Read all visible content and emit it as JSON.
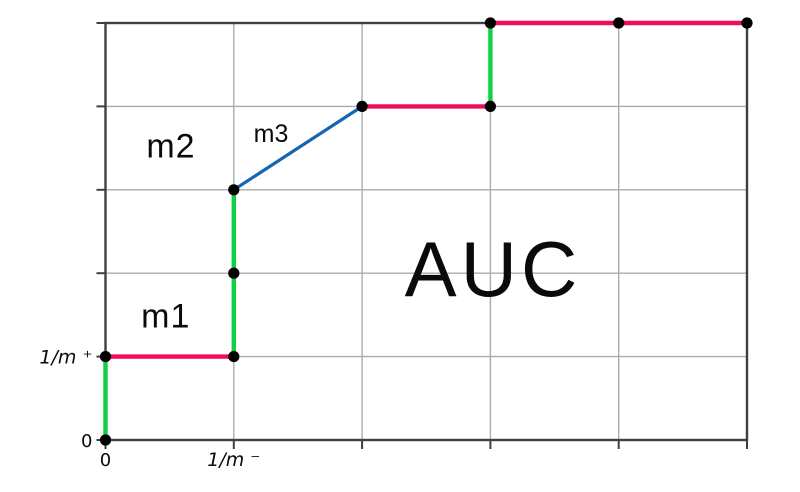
{
  "figure": {
    "description_label": "AUC"
  },
  "chart_data": {
    "type": "line",
    "subtype": "roc-step-curve",
    "title": "",
    "xlabel": "",
    "ylabel": "",
    "xlim": [
      0,
      5
    ],
    "ylim": [
      0,
      5
    ],
    "grid": true,
    "x_gridline_values": [
      0,
      1,
      2,
      3,
      4,
      5
    ],
    "y_gridline_values": [
      0,
      1,
      2,
      3,
      4,
      5
    ],
    "x_ticks": [
      {
        "value": 0,
        "label": "0"
      },
      {
        "value": 1,
        "label": "1/m ⁻"
      }
    ],
    "y_ticks": [
      {
        "value": 0,
        "label": "0"
      },
      {
        "value": 1,
        "label": "1/m ⁺"
      }
    ],
    "curve_points": [
      [
        0,
        0
      ],
      [
        0,
        1
      ],
      [
        1,
        1
      ],
      [
        1,
        2
      ],
      [
        1,
        3
      ],
      [
        2,
        4
      ],
      [
        3,
        4
      ],
      [
        3,
        5
      ],
      [
        5,
        5
      ]
    ],
    "segments": [
      {
        "from": [
          0,
          0
        ],
        "to": [
          0,
          1
        ],
        "kind": "positive_step"
      },
      {
        "from": [
          0,
          1
        ],
        "to": [
          1,
          1
        ],
        "kind": "negative_step"
      },
      {
        "from": [
          1,
          1
        ],
        "to": [
          1,
          2
        ],
        "kind": "positive_step"
      },
      {
        "from": [
          1,
          2
        ],
        "to": [
          1,
          3
        ],
        "kind": "positive_step"
      },
      {
        "from": [
          1,
          3
        ],
        "to": [
          2,
          4
        ],
        "kind": "tie_segment"
      },
      {
        "from": [
          2,
          4
        ],
        "to": [
          3,
          4
        ],
        "kind": "negative_step"
      },
      {
        "from": [
          3,
          4
        ],
        "to": [
          3,
          5
        ],
        "kind": "positive_step"
      },
      {
        "from": [
          3,
          5
        ],
        "to": [
          5,
          5
        ],
        "kind": "negative_step"
      }
    ],
    "markers": [
      [
        0,
        0
      ],
      [
        0,
        1
      ],
      [
        1,
        1
      ],
      [
        1,
        2
      ],
      [
        1,
        3
      ],
      [
        2,
        4
      ],
      [
        3,
        4
      ],
      [
        3,
        5
      ],
      [
        4,
        5
      ],
      [
        5,
        5
      ]
    ],
    "annotations": [
      {
        "id": "m1",
        "text": "m1",
        "x": 0.47,
        "y": 1.48
      },
      {
        "id": "m2",
        "text": "m2",
        "x": 0.51,
        "y": 3.52
      },
      {
        "id": "m3",
        "text": "m3",
        "x": 1.29,
        "y": 3.67
      },
      {
        "id": "auc",
        "text": "AUC",
        "x": 3.02,
        "y": 2.05
      }
    ],
    "colors": {
      "positive_step": "#0ED145",
      "negative_step": "#ED0D5A",
      "tie_segment": "#1565B5",
      "marker": "#000000",
      "grid": "#ABABAB",
      "frame": "#3F3F3F",
      "background": "#FFFFFF"
    },
    "legend": null
  }
}
